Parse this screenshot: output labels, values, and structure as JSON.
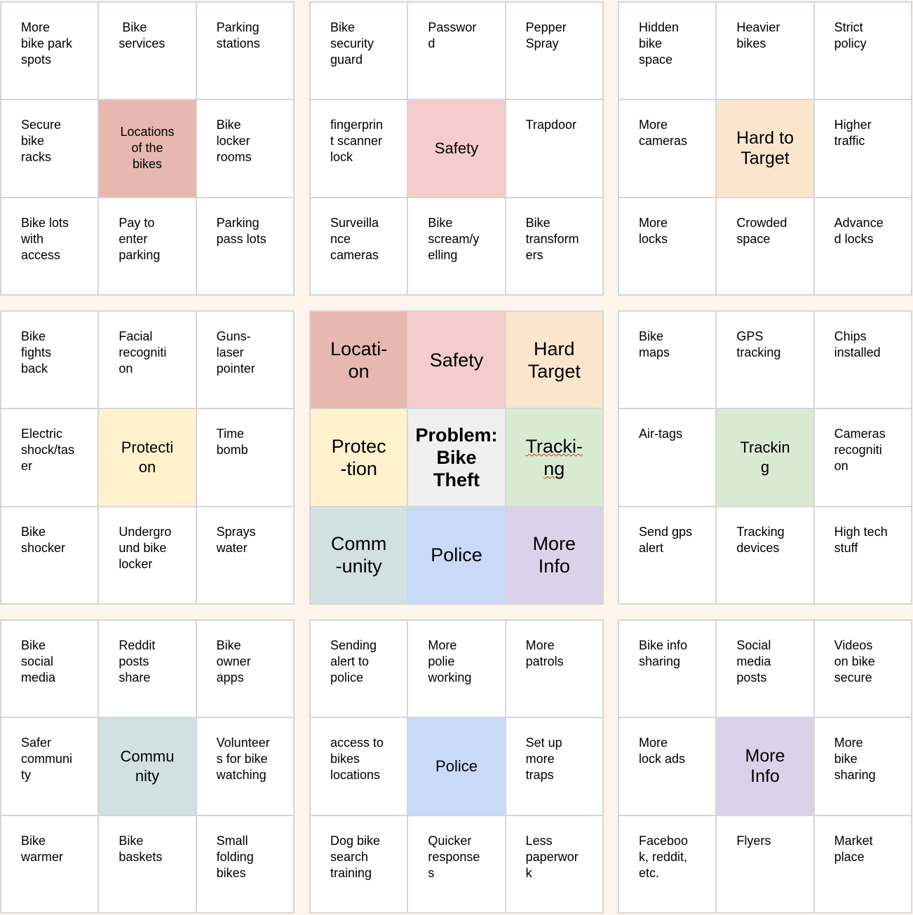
{
  "center": {
    "cells": [
      "Locati-\non",
      "Safety",
      "Hard\nTarget",
      "Protec\n-tion",
      "Problem:\nBike Theft",
      "Tracki-\nng",
      "Comm\n-unity",
      "Police",
      "More\nInfo"
    ],
    "colors": [
      "#e6b8af",
      "#f4cccc",
      "#fce5cd",
      "#fff2cc",
      "#efefef",
      "#d9ead3",
      "#d0e0e3",
      "#c9daf8",
      "#d9d2e9"
    ]
  },
  "blocks": [
    {
      "theme_color": "#e6b8af",
      "cells": [
        "More\nbike park\nspots",
        " Bike\nservices",
        "Parking\nstations",
        "Secure\nbike\nracks",
        "Locations\nof the\nbikes",
        "Bike\nlocker\nrooms",
        "Bike lots\nwith\naccess",
        "Pay to\nenter\nparking",
        "Parking\npass lots"
      ]
    },
    {
      "theme_color": "#f4cccc",
      "cells": [
        "Bike\nsecurity\nguard",
        "Passwor\nd",
        "Pepper\nSpray",
        "fingerprin\nt scanner\nlock",
        "Safety",
        "Trapdoor",
        "Surveilla\nnce\ncameras",
        "Bike\nscream/y\nelling",
        "Bike\ntransform\ners"
      ]
    },
    {
      "theme_color": "#fce5cd",
      "cells": [
        "Hidden\nbike\nspace",
        "Heavier\nbikes",
        "Strict\npolicy",
        "More\ncameras",
        "Hard to\nTarget",
        "Higher\ntraffic",
        "More\nlocks",
        "Crowded\nspace",
        "Advance\nd locks"
      ]
    },
    {
      "theme_color": "#fff2cc",
      "cells": [
        "Bike\nfights\nback",
        "Facial\nrecogniti\non",
        "Guns-\nlaser\npointer",
        "Electric\nshock/tas\ner",
        "Protecti\non",
        "Time\nbomb",
        "Bike\nshocker",
        "Undergro\nund bike\nlocker",
        "Sprays\nwater"
      ]
    },
    {
      "theme_color": "#d9ead3",
      "cells": [
        "Bike\nmaps",
        "GPS\ntracking",
        "Chips\ninstalled",
        "Air-tags",
        "Trackin\ng",
        "Cameras\nrecogniti\non",
        "Send gps\nalert",
        "Tracking\ndevices",
        "High tech\nstuff"
      ]
    },
    {
      "theme_color": "#d0e0e3",
      "cells": [
        "Bike\nsocial\nmedia",
        "Reddit\nposts\nshare",
        "Bike\nowner\napps",
        "Safer\ncommuni\nty",
        "Commu\nnity",
        "Volunteer\ns for bike\nwatching",
        "Bike\nwarmer",
        "Bike\nbaskets",
        "Small\nfolding\nbikes"
      ]
    },
    {
      "theme_color": "#c9daf8",
      "cells": [
        "Sending\nalert to\npolice",
        "More\npolie\nworking",
        "More\npatrols",
        "access to\nbikes\nlocations",
        "Police",
        "Set up\nmore\ntraps",
        "Dog bike\nsearch\ntraining",
        "Quicker\nresponse\ns",
        "Less\npaperwor\nk"
      ]
    },
    {
      "theme_color": "#d9d2e9",
      "cells": [
        "Bike info\nsharing",
        "Social\nmedia\nposts",
        "Videos\non bike\nsecure",
        "More\nlock ads",
        "More\nInfo",
        "More\nbike\nsharing",
        "Faceboo\nk, reddit,\netc.",
        "Flyers",
        "Market\nplace"
      ]
    }
  ]
}
